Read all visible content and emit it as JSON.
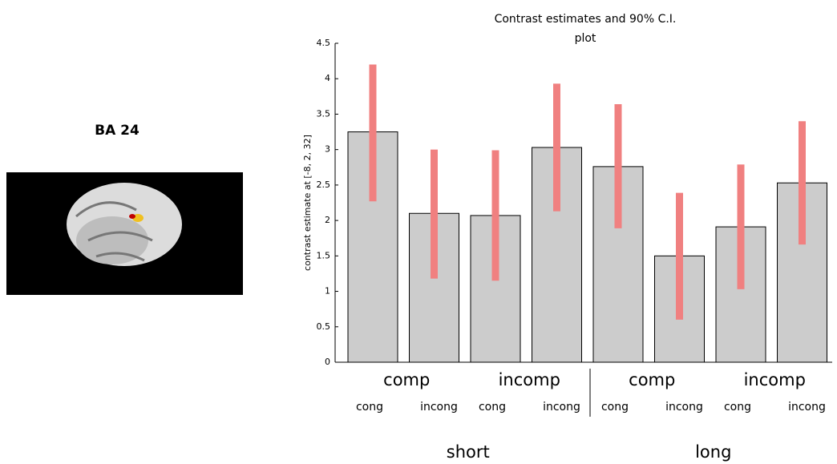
{
  "image_title": "BA 24",
  "chart_data": {
    "type": "bar",
    "title": [
      "Contrast estimates and 90% C.I.",
      "plot"
    ],
    "y_label": "contrast estimate at [-8, 2, 32]",
    "categories": [
      "cong",
      "incong",
      "cong",
      "incong",
      "cong",
      "incong",
      "cong",
      "incong"
    ],
    "groups": [
      "comp",
      "incomp",
      "comp",
      "incomp"
    ],
    "super_groups": [
      "short",
      "long"
    ],
    "values": [
      3.25,
      2.1,
      2.07,
      3.03,
      2.76,
      1.5,
      1.91,
      2.53
    ],
    "ci_low": [
      2.27,
      1.18,
      1.15,
      2.13,
      1.89,
      0.6,
      1.03,
      1.66
    ],
    "ci_high": [
      4.2,
      3.0,
      2.99,
      3.93,
      3.64,
      2.39,
      2.79,
      3.4
    ],
    "color": "#cccccc",
    "error_color": "#f08080",
    "ylim": [
      0,
      4.5
    ],
    "yticks": [
      0,
      0.5,
      1,
      1.5,
      2,
      2.5,
      3,
      3.5,
      4,
      4.5
    ]
  }
}
